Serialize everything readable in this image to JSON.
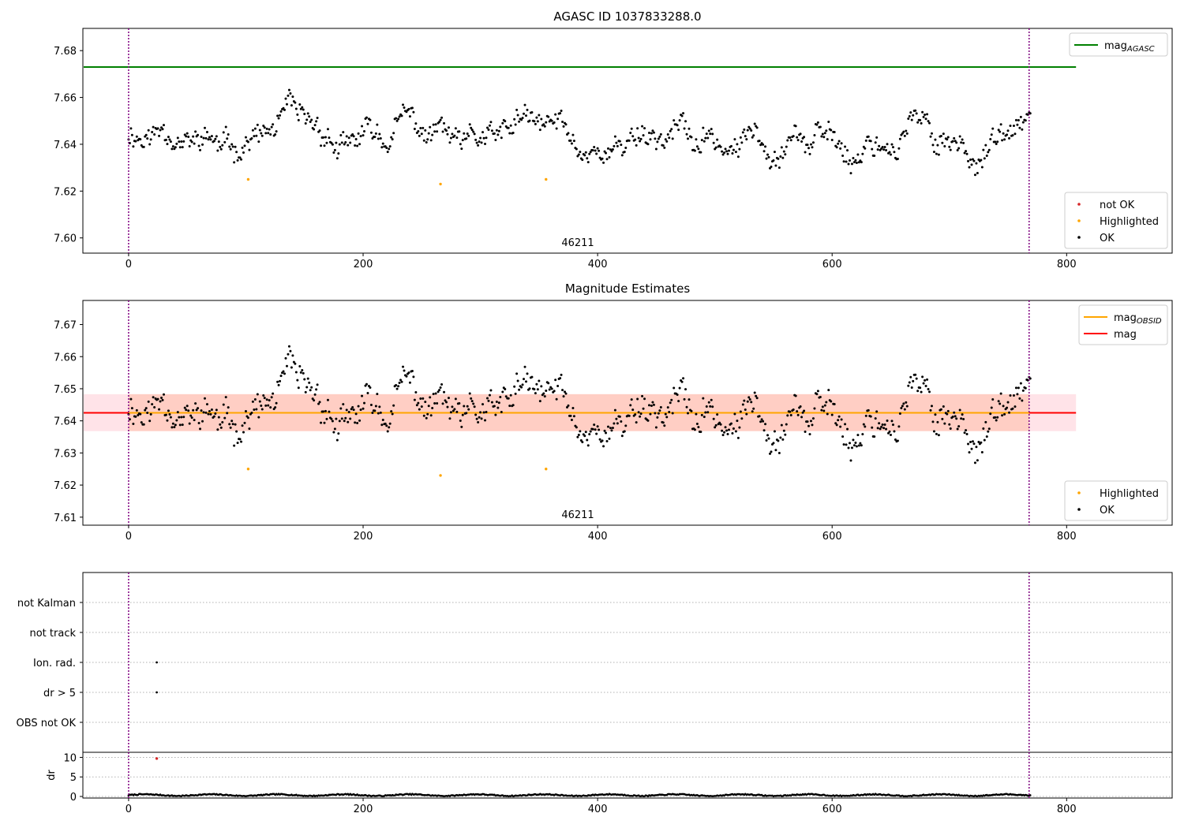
{
  "colors": {
    "ok": "#000000",
    "not_ok": "#d62728",
    "highlighted": "#ffa500",
    "mag_agasc_line": "#008000",
    "mag_obsid_line": "#ffa500",
    "mag_line": "#ff0000",
    "obs_boundary": "#800080",
    "band_pink": "#ffc0cb",
    "band_orange": "#ffa070"
  },
  "chart_data": [
    {
      "id": "panel-agasc",
      "type": "scatter",
      "title": "AGASC ID 1037833288.0",
      "obsid_label": "46211",
      "xlim": [
        -39,
        890
      ],
      "ylim": [
        7.5935,
        7.6895
      ],
      "xticks": [
        0,
        200,
        400,
        600,
        800
      ],
      "yticks": [
        7.6,
        7.62,
        7.64,
        7.66,
        7.68
      ],
      "ytick_labels": [
        "7.60",
        "7.62",
        "7.64",
        "7.66",
        "7.68"
      ],
      "obs_boundaries": [
        0,
        768
      ],
      "hlines": [
        {
          "name": "magAGASC",
          "y": 7.673,
          "x": [
            -39,
            808
          ],
          "color": "#008000"
        }
      ],
      "bands": [],
      "mag_series": {
        "n": 770,
        "base": 7.6425,
        "dips": 4,
        "seed": 11
      },
      "highlighted": {
        "x": [
          102,
          266,
          356
        ],
        "y": [
          7.625,
          7.623,
          7.625
        ]
      },
      "legends": [
        {
          "position": "top-right",
          "entries": [
            {
              "kind": "line",
              "color": "#008000",
              "label": "mag",
              "sub": "AGASC"
            }
          ]
        },
        {
          "position": "bottom-right",
          "entries": [
            {
              "kind": "dot",
              "color": "#d62728",
              "label": "not OK"
            },
            {
              "kind": "dot",
              "color": "#ffa500",
              "label": "Highlighted"
            },
            {
              "kind": "dot",
              "color": "#000000",
              "label": "OK"
            }
          ]
        }
      ]
    },
    {
      "id": "panel-estimates",
      "type": "scatter",
      "title": "Magnitude Estimates",
      "obsid_label": "46211",
      "xlim": [
        -39,
        890
      ],
      "ylim": [
        7.6075,
        7.6775
      ],
      "xticks": [
        0,
        200,
        400,
        600,
        800
      ],
      "yticks": [
        7.61,
        7.62,
        7.63,
        7.64,
        7.65,
        7.66,
        7.67
      ],
      "ytick_labels": [
        "7.61",
        "7.62",
        "7.63",
        "7.64",
        "7.65",
        "7.66",
        "7.67"
      ],
      "obs_boundaries": [
        0,
        768
      ],
      "hlines": [
        {
          "name": "mag",
          "y": 7.6425,
          "x": [
            -39,
            808
          ],
          "color": "#ff0000"
        },
        {
          "name": "magOBSID",
          "y": 7.6425,
          "x": [
            0,
            768
          ],
          "color": "#ffa500"
        }
      ],
      "bands": [
        {
          "y": [
            7.6368,
            7.6483
          ],
          "x": [
            -39,
            808
          ],
          "color": "#ffc0cb",
          "opacity": 0.45
        },
        {
          "y": [
            7.6368,
            7.6483
          ],
          "x": [
            0,
            768
          ],
          "color": "#ffa070",
          "opacity": 0.3
        }
      ],
      "mag_series": {
        "n": 770,
        "base": 7.6425,
        "dips": 4,
        "seed": 11
      },
      "highlighted": {
        "x": [
          102,
          266,
          356
        ],
        "y": [
          7.625,
          7.623,
          7.625
        ]
      },
      "legends": [
        {
          "position": "top-right",
          "entries": [
            {
              "kind": "line",
              "color": "#ffa500",
              "label": "mag",
              "sub": "OBSID"
            },
            {
              "kind": "line",
              "color": "#ff0000",
              "label": "mag",
              "sub": ""
            }
          ]
        },
        {
          "position": "bottom-right",
          "entries": [
            {
              "kind": "dot",
              "color": "#ffa500",
              "label": "Highlighted"
            },
            {
              "kind": "dot",
              "color": "#000000",
              "label": "OK"
            }
          ]
        }
      ]
    },
    {
      "id": "panel-flags",
      "type": "scatter",
      "title": "",
      "xlim": [
        -39,
        890
      ],
      "categories": [
        "not Kalman",
        "not track",
        "Ion. rad.",
        "dr > 5",
        "OBS not OK"
      ],
      "obs_boundaries": [
        0,
        768
      ],
      "flag_points": [
        {
          "category": "Ion. rad.",
          "x": 24
        },
        {
          "category": "dr > 5",
          "x": 24
        }
      ]
    },
    {
      "id": "panel-dr",
      "type": "scatter",
      "title": "",
      "ylabel": "dr",
      "xlim": [
        -39,
        890
      ],
      "ylim": [
        -0.4,
        11.3
      ],
      "xticks": [
        0,
        200,
        400,
        600,
        800
      ],
      "yticks": [
        0,
        5,
        10
      ],
      "ytick_labels": [
        "0",
        "5",
        "10"
      ],
      "obs_boundaries": [
        0,
        768
      ],
      "dr_series": {
        "n": 770,
        "base": 0.35
      },
      "not_ok": {
        "x": [
          24
        ],
        "y": [
          9.7
        ]
      }
    }
  ]
}
